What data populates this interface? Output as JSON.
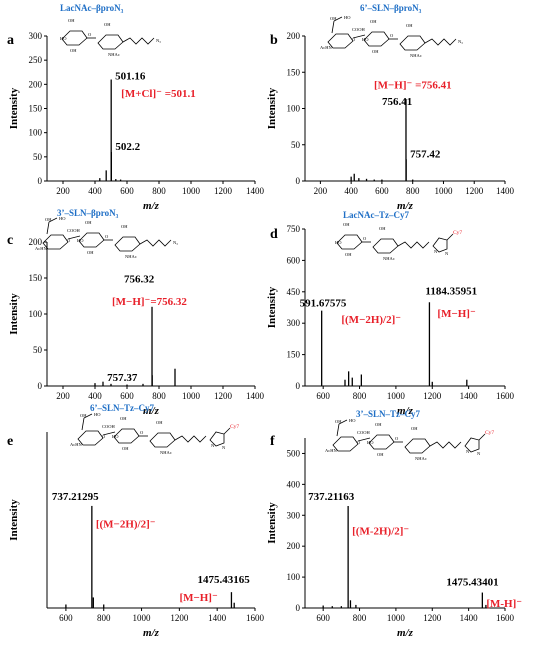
{
  "chart_data": [
    {
      "type": "bar",
      "panel": "a",
      "compound": "LacNAc–βproN₃",
      "xlabel": "m/z",
      "ylabel": "Intensity",
      "xlim": [
        100,
        1400
      ],
      "ylim": [
        0,
        300
      ],
      "xticks": [
        200,
        400,
        600,
        800,
        1000,
        1200,
        1400
      ],
      "yticks": [
        0,
        50,
        100,
        150,
        200,
        250,
        300
      ],
      "peaks": [
        {
          "x": 430,
          "y": 6
        },
        {
          "x": 470,
          "y": 22
        },
        {
          "x": 501.16,
          "y": 210
        },
        {
          "x": 502.2,
          "y": 60
        },
        {
          "x": 530,
          "y": 4
        },
        {
          "x": 560,
          "y": 3
        }
      ],
      "labels": [
        {
          "text": "501.16",
          "kind": "peak",
          "x": 501.16,
          "y": 210
        },
        {
          "text": "[M+Cl]⁻ =501.1",
          "kind": "ion",
          "x": 501.16,
          "y": 180
        },
        {
          "text": "502.2",
          "kind": "peak",
          "x": 502.2,
          "y": 60
        }
      ]
    },
    {
      "type": "bar",
      "panel": "b",
      "compound": "6’–SLN–βproN₃",
      "xlabel": "m/z",
      "ylabel": "Intensity",
      "xlim": [
        100,
        1400
      ],
      "ylim": [
        0,
        200
      ],
      "xticks": [
        200,
        400,
        600,
        800,
        1000,
        1200,
        1400
      ],
      "yticks": [
        0,
        50,
        100,
        150,
        200
      ],
      "peaks": [
        {
          "x": 400,
          "y": 6
        },
        {
          "x": 420,
          "y": 10
        },
        {
          "x": 450,
          "y": 4
        },
        {
          "x": 500,
          "y": 3
        },
        {
          "x": 550,
          "y": 2
        },
        {
          "x": 600,
          "y": 2
        },
        {
          "x": 756.41,
          "y": 113
        },
        {
          "x": 757.42,
          "y": 30
        },
        {
          "x": 800,
          "y": 2
        }
      ],
      "labels": [
        {
          "text": "[M−H]⁻ =756.41",
          "kind": "ion",
          "x": 756.41,
          "y": 125
        },
        {
          "text": "756.41",
          "kind": "peak",
          "x": 756.41,
          "y": 113
        },
        {
          "text": "757.42",
          "kind": "peak",
          "x": 757.42,
          "y": 30
        }
      ]
    },
    {
      "type": "bar",
      "panel": "c",
      "compound": "3’–SLN–βproN₃",
      "xlabel": "m/z",
      "ylabel": "Intensity",
      "xlim": [
        100,
        1400
      ],
      "ylim": [
        0,
        200
      ],
      "xticks": [
        200,
        400,
        600,
        800,
        1000,
        1200,
        1400
      ],
      "yticks": [
        0,
        50,
        100,
        150,
        200
      ],
      "peaks": [
        {
          "x": 400,
          "y": 4
        },
        {
          "x": 450,
          "y": 6
        },
        {
          "x": 500,
          "y": 3
        },
        {
          "x": 600,
          "y": 2
        },
        {
          "x": 700,
          "y": 3
        },
        {
          "x": 756.32,
          "y": 110
        },
        {
          "x": 757.37,
          "y": 15
        },
        {
          "x": 900,
          "y": 24
        }
      ],
      "labels": [
        {
          "text": "756.32",
          "kind": "peak",
          "x": 756.32,
          "y": 138
        },
        {
          "text": "[M−H]⁻=756.32",
          "kind": "ion",
          "x": 756.32,
          "y": 118
        },
        {
          "text": "757.37",
          "kind": "peak",
          "x": 757.37,
          "y": 15
        }
      ]
    },
    {
      "type": "bar",
      "panel": "d",
      "compound": "LacNAc–Tz–Cy7",
      "xlabel": "m/z",
      "ylabel": "Intensity",
      "xlim": [
        500,
        1600
      ],
      "ylim": [
        0,
        750
      ],
      "xticks": [
        600,
        800,
        1000,
        1200,
        1400,
        1600
      ],
      "yticks": [
        0,
        150,
        300,
        450,
        600,
        750
      ],
      "peaks": [
        {
          "x": 591.67575,
          "y": 360
        },
        {
          "x": 720,
          "y": 30
        },
        {
          "x": 740,
          "y": 70
        },
        {
          "x": 760,
          "y": 40
        },
        {
          "x": 810,
          "y": 55
        },
        {
          "x": 1184.35951,
          "y": 400
        },
        {
          "x": 1200,
          "y": 20
        },
        {
          "x": 1390,
          "y": 30
        }
      ],
      "labels": [
        {
          "text": "591.67575",
          "kind": "peak",
          "x": 591.67575,
          "y": 360
        },
        {
          "text": "[(M−2H)/2]⁻",
          "kind": "ion",
          "x": 700,
          "y": 300
        },
        {
          "text": "1184.35951",
          "kind": "peak",
          "x": 1184.35951,
          "y": 400
        },
        {
          "text": "[M−H]⁻",
          "kind": "ion",
          "x": 1184.35951,
          "y": 330
        }
      ]
    },
    {
      "type": "bar",
      "panel": "e",
      "compound": "6’–SLN–Tz–Cy7",
      "xlabel": "m/z",
      "ylabel": "Intensity",
      "xlim": [
        500,
        1600
      ],
      "ylim": [
        0,
        100
      ],
      "xticks": [
        600,
        800,
        1000,
        1200,
        1400,
        1600
      ],
      "yticks": [],
      "peaks": [
        {
          "x": 600,
          "y": 2
        },
        {
          "x": 737.21295,
          "y": 58
        },
        {
          "x": 745,
          "y": 6
        },
        {
          "x": 800,
          "y": 2
        },
        {
          "x": 1475.43165,
          "y": 9
        },
        {
          "x": 1490,
          "y": 3
        }
      ],
      "labels": [
        {
          "text": "737.21295",
          "kind": "peak",
          "x": 737.21295,
          "y": 58
        },
        {
          "text": "[(M−2H)/2]⁻",
          "kind": "ion",
          "x": 737.21295,
          "y": 48
        },
        {
          "text": "1475.43165",
          "kind": "peak",
          "x": 1475.43165,
          "y": 13
        },
        {
          "text": "[M−H]⁻",
          "kind": "ion",
          "x": 1475.43165,
          "y": 5
        }
      ]
    },
    {
      "type": "bar",
      "panel": "f",
      "compound": "3’–SLN–Tz–Cy7",
      "xlabel": "m/z",
      "ylabel": "Intensity",
      "xlim": [
        500,
        1600
      ],
      "ylim": [
        0,
        550
      ],
      "xticks": [
        600,
        800,
        1000,
        1200,
        1400,
        1600
      ],
      "yticks": [
        0,
        100,
        200,
        300,
        400,
        500
      ],
      "peaks": [
        {
          "x": 600,
          "y": 8
        },
        {
          "x": 650,
          "y": 6
        },
        {
          "x": 700,
          "y": 6
        },
        {
          "x": 737.21163,
          "y": 330
        },
        {
          "x": 750,
          "y": 25
        },
        {
          "x": 780,
          "y": 10
        },
        {
          "x": 1475.43401,
          "y": 50
        },
        {
          "x": 1495,
          "y": 10
        }
      ],
      "labels": [
        {
          "text": "737.21163",
          "kind": "peak",
          "x": 737.21163,
          "y": 330
        },
        {
          "text": "[(M-2H)/2]⁻",
          "kind": "ion",
          "x": 737.21163,
          "y": 250
        },
        {
          "text": "1475.43401",
          "kind": "peak",
          "x": 1475.43401,
          "y": 60
        },
        {
          "text": "[M-H]⁻",
          "kind": "ion",
          "x": 1475.43401,
          "y": 10
        }
      ]
    }
  ],
  "structure_labels": {
    "ho": "HO",
    "oh": "OH",
    "nhac": "NHAc",
    "achn": "AcHN",
    "cooh": "COOH",
    "ooc": "OOC",
    "n3": "N₃",
    "cy7": "Cy7",
    "o": "O",
    "n": "N"
  }
}
